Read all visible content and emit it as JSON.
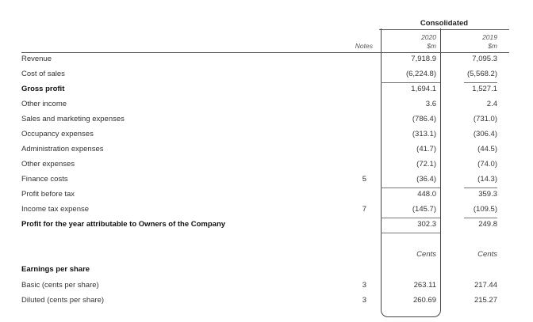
{
  "header": {
    "consolidated": "Consolidated",
    "notes": "Notes",
    "col_2020_year": "2020",
    "col_2020_unit": "$m",
    "col_2019_year": "2019",
    "col_2019_unit": "$m"
  },
  "rows": [
    {
      "label": "Revenue",
      "note": "",
      "v2020": "7,918.9",
      "v2019": "7,095.3"
    },
    {
      "label": "Cost of sales",
      "note": "",
      "v2020": "(6,224.8)",
      "v2019": "(5,568.2)"
    },
    {
      "label": "Gross profit",
      "note": "",
      "v2020": "1,694.1",
      "v2019": "1,527.1"
    },
    {
      "label": "Other income",
      "note": "",
      "v2020": "3.6",
      "v2019": "2.4"
    },
    {
      "label": "Sales and marketing expenses",
      "note": "",
      "v2020": "(786.4)",
      "v2019": "(731.0)"
    },
    {
      "label": "Occupancy expenses",
      "note": "",
      "v2020": "(313.1)",
      "v2019": "(306.4)"
    },
    {
      "label": "Administration expenses",
      "note": "",
      "v2020": "(41.7)",
      "v2019": "(44.5)"
    },
    {
      "label": "Other expenses",
      "note": "",
      "v2020": "(72.1)",
      "v2019": "(74.0)"
    },
    {
      "label": "Finance costs",
      "note": "5",
      "v2020": "(36.4)",
      "v2019": "(14.3)"
    },
    {
      "label": "Profit before tax",
      "note": "",
      "v2020": "448.0",
      "v2019": "359.3"
    },
    {
      "label": "Income tax expense",
      "note": "7",
      "v2020": "(145.7)",
      "v2019": "(109.5)"
    },
    {
      "label": "Profit for the year attributable to Owners of the Company",
      "note": "",
      "v2020": "302.3",
      "v2019": "249.8"
    },
    {
      "label": "",
      "note": "",
      "v2020": "Cents",
      "v2019": "Cents"
    },
    {
      "label": "Earnings per share",
      "note": "",
      "v2020": "",
      "v2019": ""
    },
    {
      "label": "Basic (cents per share)",
      "note": "3",
      "v2020": "263.11",
      "v2019": "217.44"
    },
    {
      "label": "Diluted (cents per share)",
      "note": "3",
      "v2020": "260.69",
      "v2019": "215.27"
    }
  ]
}
